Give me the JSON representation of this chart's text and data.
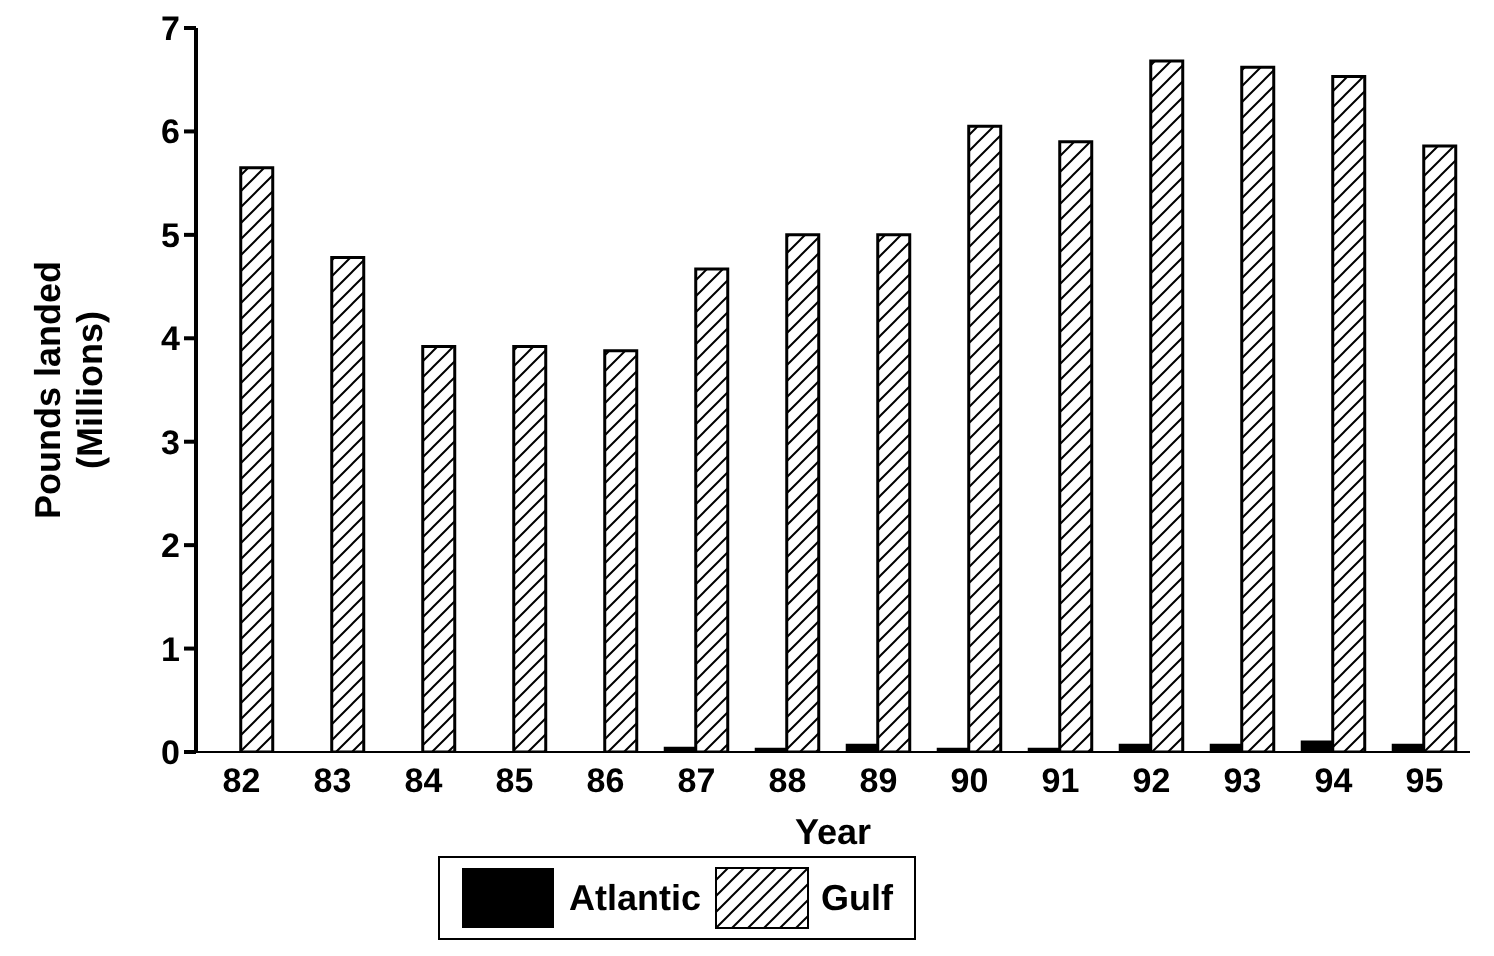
{
  "chart_data": {
    "type": "bar",
    "xlabel": "Year",
    "ylabel": "Pounds landed\n(Millions)",
    "categories": [
      "82",
      "83",
      "84",
      "85",
      "86",
      "87",
      "88",
      "89",
      "90",
      "91",
      "92",
      "93",
      "94",
      "95"
    ],
    "series": [
      {
        "name": "Atlantic",
        "color": "#000000",
        "values": [
          0.01,
          0.01,
          0.01,
          0.01,
          0.01,
          0.05,
          0.04,
          0.08,
          0.04,
          0.04,
          0.08,
          0.08,
          0.11,
          0.08
        ]
      },
      {
        "name": "Gulf",
        "color": "#000000",
        "values": [
          5.65,
          4.78,
          3.92,
          3.92,
          3.88,
          4.67,
          5.0,
          5.0,
          6.05,
          5.9,
          6.68,
          6.62,
          6.53,
          5.86
        ]
      }
    ],
    "ylim": [
      0,
      7
    ],
    "yticks": [
      0,
      1,
      2,
      3,
      4,
      5,
      6,
      7
    ],
    "legend": "bottom"
  }
}
